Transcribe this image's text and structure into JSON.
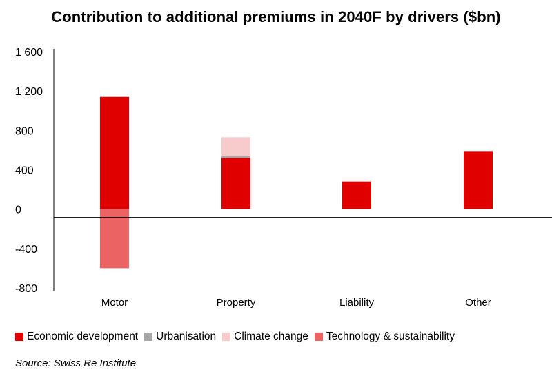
{
  "title": "Contribution to additional premiums in 2040F by drivers ($bn)",
  "source": "Source: Swiss Re Institute",
  "chart_data": {
    "type": "bar",
    "stacked": true,
    "title": "Contribution to additional premiums in 2040F by drivers ($bn)",
    "xlabel": "",
    "ylabel": "",
    "ylim": [
      -800,
      1600
    ],
    "yticks": [
      1600,
      1200,
      800,
      400,
      0,
      -400,
      -800
    ],
    "ytick_labels": [
      "1 600",
      "1 200",
      "800",
      "400",
      "0",
      "-400",
      "-800"
    ],
    "categories": [
      "Motor",
      "Property",
      "Liability",
      "Other"
    ],
    "series": [
      {
        "name": "Economic development",
        "color": "#e00000",
        "values": [
          1140,
          520,
          280,
          590
        ]
      },
      {
        "name": "Urbanisation",
        "color": "#a6a6a6",
        "values": [
          0,
          20,
          0,
          0
        ]
      },
      {
        "name": "Climate change",
        "color": "#f7cbcb",
        "values": [
          0,
          190,
          0,
          0
        ]
      },
      {
        "name": "Technology & sustainability",
        "color": "#ec6363",
        "values": [
          -600,
          0,
          0,
          0
        ]
      }
    ],
    "legend_position": "bottom"
  }
}
